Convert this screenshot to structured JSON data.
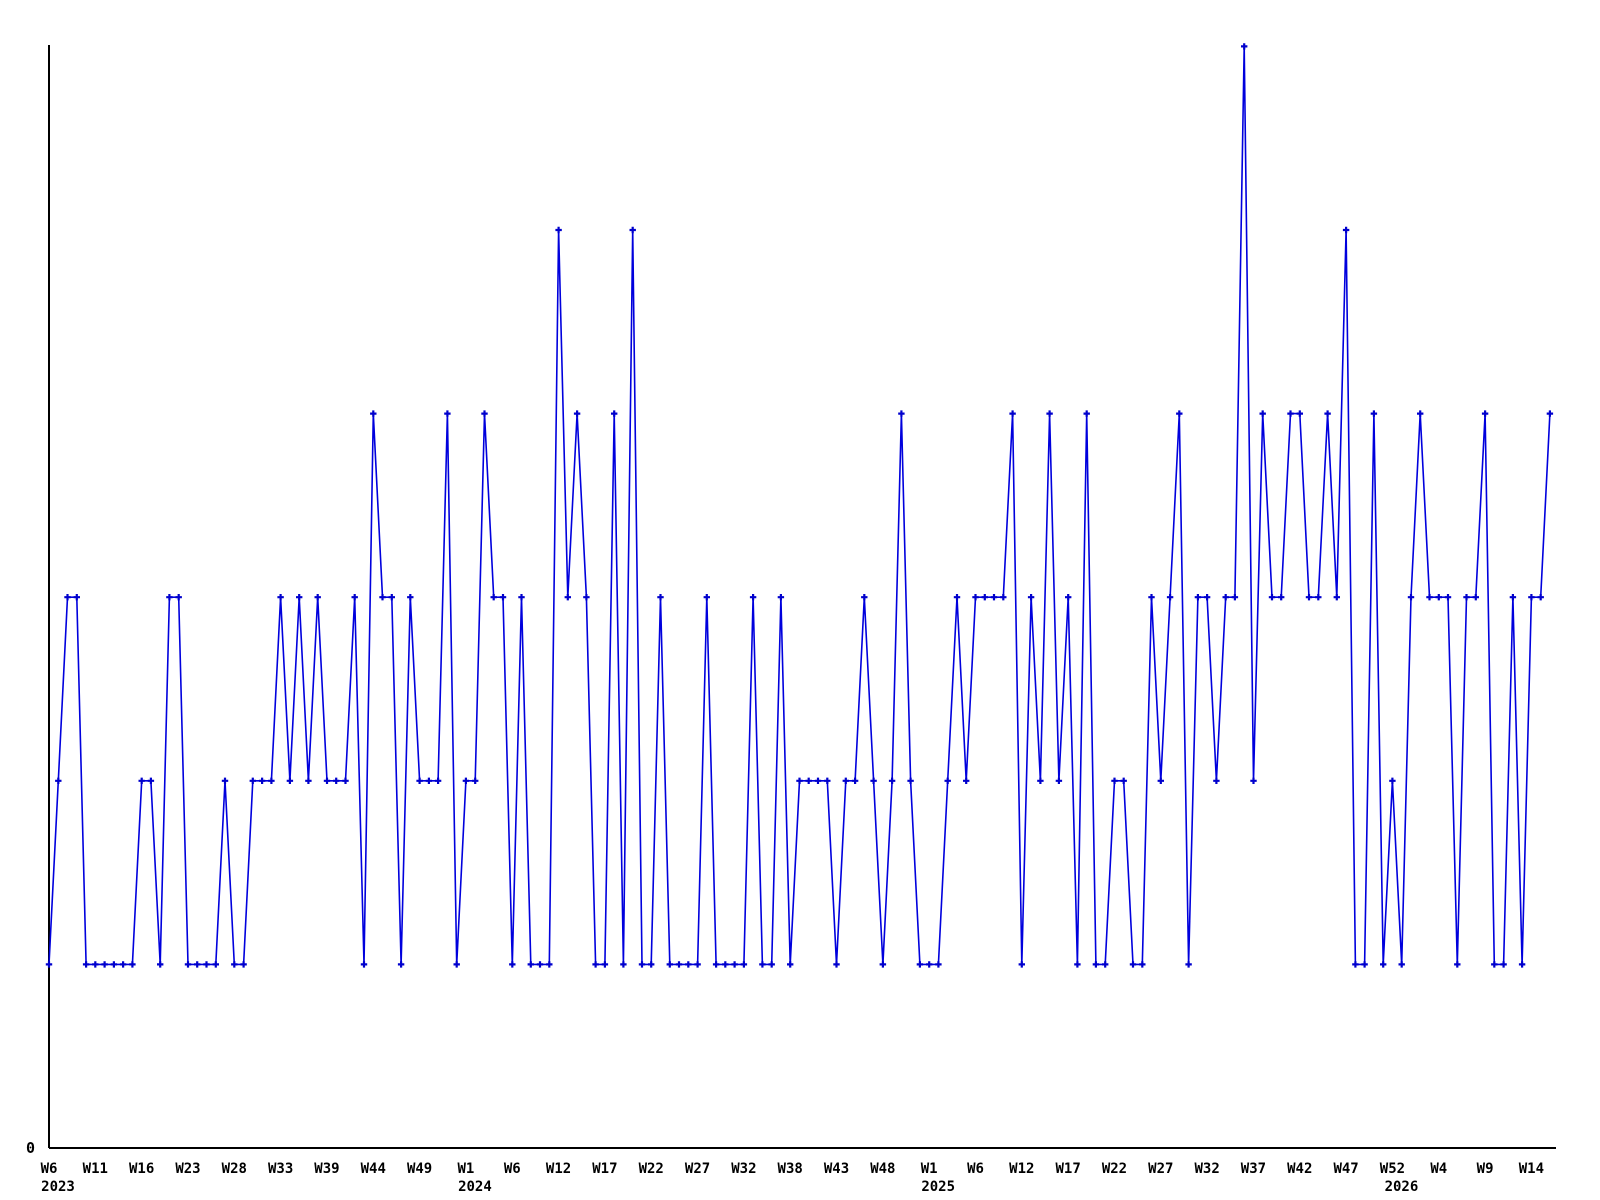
{
  "chart_data": {
    "type": "line",
    "title": "",
    "xlabel": "",
    "ylabel": "",
    "legend": "none",
    "grid": false,
    "background_color": "#ffffff",
    "line_color": "#0000dd",
    "marker_color": "#0000cd",
    "marker_shape": "plus",
    "axis_color": "#000000",
    "ylim": [
      0,
      6.3
    ],
    "y_axis_ticks": [
      {
        "value": 0,
        "label": "0"
      }
    ],
    "x_unit": "ISO week",
    "x_ticks": [
      {
        "i": 0,
        "label": "W6",
        "year": "2023"
      },
      {
        "i": 5,
        "label": "W11"
      },
      {
        "i": 10,
        "label": "W16"
      },
      {
        "i": 15,
        "label": "W23"
      },
      {
        "i": 20,
        "label": "W28"
      },
      {
        "i": 25,
        "label": "W33"
      },
      {
        "i": 30,
        "label": "W39"
      },
      {
        "i": 35,
        "label": "W44"
      },
      {
        "i": 40,
        "label": "W49"
      },
      {
        "i": 45,
        "label": "W1",
        "year": "2024"
      },
      {
        "i": 50,
        "label": "W6"
      },
      {
        "i": 55,
        "label": "W12"
      },
      {
        "i": 60,
        "label": "W17"
      },
      {
        "i": 65,
        "label": "W22"
      },
      {
        "i": 70,
        "label": "W27"
      },
      {
        "i": 75,
        "label": "W32"
      },
      {
        "i": 80,
        "label": "W38"
      },
      {
        "i": 85,
        "label": "W43"
      },
      {
        "i": 90,
        "label": "W48"
      },
      {
        "i": 95,
        "label": "W1",
        "year": "2025"
      },
      {
        "i": 100,
        "label": "W6"
      },
      {
        "i": 105,
        "label": "W12"
      },
      {
        "i": 110,
        "label": "W17"
      },
      {
        "i": 115,
        "label": "W22"
      },
      {
        "i": 120,
        "label": "W27"
      },
      {
        "i": 125,
        "label": "W32"
      },
      {
        "i": 130,
        "label": "W37"
      },
      {
        "i": 135,
        "label": "W42"
      },
      {
        "i": 140,
        "label": "W47"
      },
      {
        "i": 145,
        "label": "W52",
        "year": "2026"
      },
      {
        "i": 150,
        "label": "W4"
      },
      {
        "i": 155,
        "label": "W9"
      },
      {
        "i": 160,
        "label": "W14"
      }
    ],
    "values": [
      1,
      2,
      3,
      3,
      1,
      1,
      1,
      1,
      1,
      1,
      2,
      2,
      1,
      3,
      3,
      1,
      1,
      1,
      1,
      2,
      1,
      1,
      2,
      2,
      2,
      3,
      2,
      3,
      2,
      3,
      2,
      2,
      2,
      3,
      1,
      4,
      3,
      3,
      1,
      3,
      2,
      2,
      2,
      4,
      1,
      2,
      2,
      4,
      3,
      3,
      1,
      3,
      1,
      1,
      1,
      5,
      3,
      4,
      3,
      1,
      1,
      4,
      1,
      5,
      1,
      1,
      3,
      1,
      1,
      1,
      1,
      3,
      1,
      1,
      1,
      1,
      3,
      1,
      1,
      3,
      1,
      2,
      2,
      2,
      2,
      1,
      2,
      2,
      3,
      2,
      1,
      2,
      4,
      2,
      1,
      1,
      1,
      2,
      3,
      2,
      3,
      3,
      3,
      3,
      4,
      1,
      3,
      2,
      4,
      2,
      3,
      1,
      4,
      1,
      1,
      2,
      2,
      1,
      1,
      3,
      2,
      3,
      4,
      1,
      3,
      3,
      2,
      3,
      3,
      6,
      2,
      4,
      3,
      3,
      4,
      4,
      3,
      3,
      4,
      3,
      5,
      1,
      1,
      4,
      1,
      2,
      1,
      3,
      4,
      3,
      3,
      3,
      1,
      3,
      3,
      4,
      1,
      1,
      3,
      1,
      3,
      3,
      4
    ]
  }
}
